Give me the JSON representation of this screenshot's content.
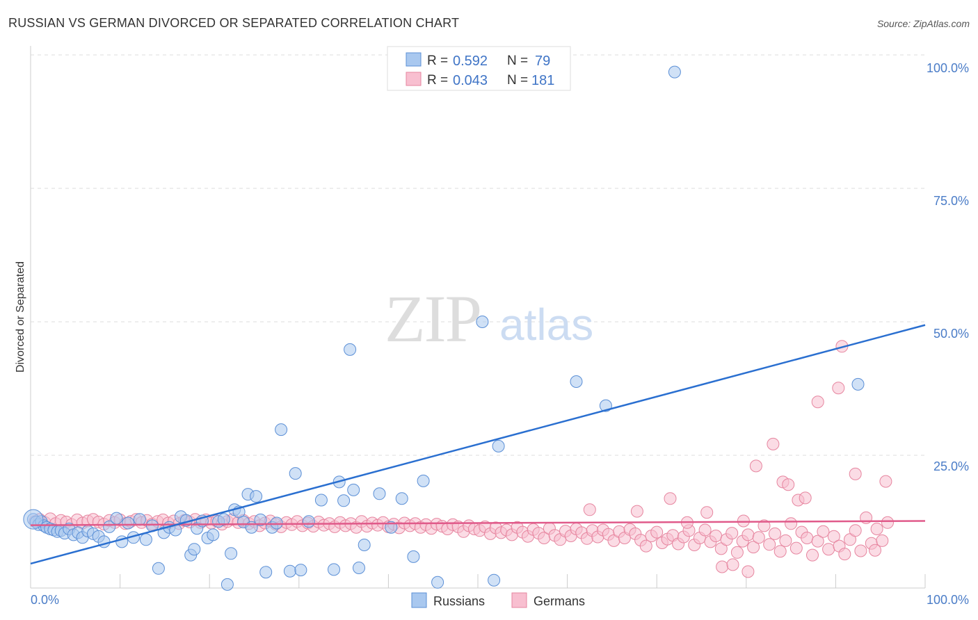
{
  "title": "RUSSIAN VS GERMAN DIVORCED OR SEPARATED CORRELATION CHART",
  "source": "Source: ZipAtlas.com",
  "watermark": {
    "zip": "ZIP",
    "atlas": "atlas"
  },
  "colors": {
    "russians_fill": "#a9c8ef",
    "russians_stroke": "#5b8fd6",
    "russians_line": "#2a6fd0",
    "germans_fill": "#f8bfd0",
    "germans_stroke": "#e6859f",
    "germans_line": "#e05a8a",
    "tick_text": "#4a7cc7",
    "grid": "#dddddd"
  },
  "stats": {
    "russians": {
      "r_label": "R =",
      "r_value": "0.592",
      "n_label": "N =",
      "n_value": "79"
    },
    "germans": {
      "r_label": "R =",
      "r_value": "0.043",
      "n_label": "N =",
      "n_value": "181"
    }
  },
  "chart_data": {
    "type": "scatter",
    "title": "RUSSIAN VS GERMAN DIVORCED OR SEPARATED CORRELATION CHART",
    "xlabel": "",
    "ylabel": "Divorced or Separated",
    "xlim": [
      0,
      100
    ],
    "ylim": [
      0,
      100
    ],
    "x_tick_labels": [
      "0.0%",
      "100.0%"
    ],
    "y_ticks": [
      25,
      50,
      75,
      100
    ],
    "y_tick_labels": [
      "25.0%",
      "50.0%",
      "75.0%",
      "100.0%"
    ],
    "grid": true,
    "legend_position": "bottom",
    "series": [
      {
        "name": "Russians",
        "trendline": {
          "x": [
            0,
            100
          ],
          "y": [
            4.7,
            49.4
          ]
        },
        "points": [
          [
            0.3,
            13.0
          ],
          [
            0.6,
            12.5
          ],
          [
            0.9,
            12.0
          ],
          [
            1.2,
            12.6
          ],
          [
            1.5,
            11.8
          ],
          [
            1.8,
            11.5
          ],
          [
            2.2,
            11.2
          ],
          [
            2.6,
            11.0
          ],
          [
            3.0,
            10.7
          ],
          [
            3.4,
            10.9
          ],
          [
            3.8,
            10.4
          ],
          [
            4.3,
            11.2
          ],
          [
            4.8,
            10.1
          ],
          [
            5.3,
            10.5
          ],
          [
            5.8,
            9.6
          ],
          [
            6.4,
            10.8
          ],
          [
            7.0,
            10.3
          ],
          [
            7.6,
            9.8
          ],
          [
            8.2,
            8.8
          ],
          [
            8.8,
            11.6
          ],
          [
            9.6,
            13.2
          ],
          [
            10.2,
            8.8
          ],
          [
            10.9,
            12.3
          ],
          [
            11.5,
            9.6
          ],
          [
            12.2,
            13.0
          ],
          [
            12.9,
            9.2
          ],
          [
            13.6,
            11.8
          ],
          [
            14.3,
            3.8
          ],
          [
            14.9,
            10.5
          ],
          [
            15.5,
            11.5
          ],
          [
            16.2,
            11.0
          ],
          [
            16.8,
            13.5
          ],
          [
            17.4,
            12.8
          ],
          [
            17.9,
            6.3
          ],
          [
            18.3,
            7.4
          ],
          [
            18.6,
            11.3
          ],
          [
            19.2,
            12.7
          ],
          [
            19.8,
            9.5
          ],
          [
            20.4,
            10.1
          ],
          [
            21.0,
            12.6
          ],
          [
            21.6,
            13.0
          ],
          [
            22.0,
            0.8
          ],
          [
            22.4,
            6.6
          ],
          [
            22.8,
            14.8
          ],
          [
            23.3,
            14.4
          ],
          [
            23.8,
            12.5
          ],
          [
            24.3,
            17.7
          ],
          [
            24.7,
            11.5
          ],
          [
            25.2,
            17.3
          ],
          [
            25.7,
            12.9
          ],
          [
            26.3,
            3.1
          ],
          [
            27.0,
            11.5
          ],
          [
            27.5,
            12.3
          ],
          [
            28.0,
            29.8
          ],
          [
            29.0,
            3.3
          ],
          [
            29.6,
            21.6
          ],
          [
            30.2,
            3.5
          ],
          [
            31.1,
            12.6
          ],
          [
            32.5,
            16.6
          ],
          [
            33.9,
            3.6
          ],
          [
            34.5,
            20.0
          ],
          [
            35.0,
            16.5
          ],
          [
            35.7,
            44.8
          ],
          [
            36.1,
            18.5
          ],
          [
            36.7,
            3.9
          ],
          [
            37.3,
            8.2
          ],
          [
            39.0,
            17.8
          ],
          [
            40.3,
            11.5
          ],
          [
            41.5,
            16.9
          ],
          [
            42.8,
            6.0
          ],
          [
            43.9,
            20.2
          ],
          [
            45.5,
            1.2
          ],
          [
            50.5,
            50.0
          ],
          [
            51.8,
            1.6
          ],
          [
            52.3,
            26.7
          ],
          [
            61.0,
            38.8
          ],
          [
            64.3,
            34.3
          ],
          [
            72.0,
            96.8
          ],
          [
            92.5,
            38.3
          ]
        ]
      },
      {
        "name": "Germans",
        "trendline": {
          "x": [
            0,
            100
          ],
          "y": [
            11.9,
            12.7
          ]
        },
        "points": [
          [
            0.5,
            12.6
          ],
          [
            1.0,
            13.0
          ],
          [
            1.6,
            12.4
          ],
          [
            2.2,
            13.1
          ],
          [
            2.8,
            12.2
          ],
          [
            3.4,
            12.8
          ],
          [
            4.0,
            12.5
          ],
          [
            4.6,
            12.0
          ],
          [
            5.2,
            12.9
          ],
          [
            5.8,
            12.3
          ],
          [
            6.4,
            12.7
          ],
          [
            7.0,
            13.0
          ],
          [
            7.6,
            12.5
          ],
          [
            8.2,
            12.1
          ],
          [
            8.8,
            12.8
          ],
          [
            9.4,
            12.4
          ],
          [
            10.0,
            12.9
          ],
          [
            10.6,
            12.2
          ],
          [
            11.2,
            12.6
          ],
          [
            11.8,
            13.0
          ],
          [
            12.4,
            12.4
          ],
          [
            13.0,
            12.8
          ],
          [
            13.6,
            12.1
          ],
          [
            14.2,
            12.6
          ],
          [
            14.8,
            12.9
          ],
          [
            15.4,
            12.3
          ],
          [
            16.0,
            12.7
          ],
          [
            16.6,
            12.2
          ],
          [
            17.2,
            12.8
          ],
          [
            17.8,
            12.5
          ],
          [
            18.4,
            13.0
          ],
          [
            19.0,
            12.4
          ],
          [
            19.6,
            12.9
          ],
          [
            20.2,
            12.3
          ],
          [
            20.8,
            12.7
          ],
          [
            21.4,
            12.1
          ],
          [
            22.0,
            12.6
          ],
          [
            22.6,
            13.0
          ],
          [
            23.2,
            12.4
          ],
          [
            23.8,
            12.8
          ],
          [
            24.4,
            12.2
          ],
          [
            25.0,
            12.6
          ],
          [
            25.6,
            11.8
          ],
          [
            26.2,
            12.3
          ],
          [
            26.8,
            12.7
          ],
          [
            27.4,
            12.1
          ],
          [
            28.0,
            11.6
          ],
          [
            28.6,
            12.4
          ],
          [
            29.2,
            12.0
          ],
          [
            29.8,
            12.6
          ],
          [
            30.4,
            11.8
          ],
          [
            31.0,
            12.3
          ],
          [
            31.6,
            11.7
          ],
          [
            32.2,
            12.5
          ],
          [
            32.8,
            11.9
          ],
          [
            33.4,
            12.2
          ],
          [
            34.0,
            11.6
          ],
          [
            34.6,
            12.4
          ],
          [
            35.2,
            11.8
          ],
          [
            35.8,
            12.2
          ],
          [
            36.4,
            11.5
          ],
          [
            37.0,
            12.6
          ],
          [
            37.6,
            11.7
          ],
          [
            38.2,
            12.3
          ],
          [
            38.8,
            11.9
          ],
          [
            39.4,
            12.4
          ],
          [
            40.0,
            11.6
          ],
          [
            40.6,
            12.1
          ],
          [
            41.2,
            11.4
          ],
          [
            41.8,
            12.3
          ],
          [
            42.4,
            11.8
          ],
          [
            43.0,
            12.2
          ],
          [
            43.6,
            11.5
          ],
          [
            44.2,
            12.0
          ],
          [
            44.8,
            11.3
          ],
          [
            45.4,
            12.1
          ],
          [
            46.0,
            11.7
          ],
          [
            46.6,
            11.2
          ],
          [
            47.2,
            12.0
          ],
          [
            47.8,
            11.6
          ],
          [
            48.4,
            10.7
          ],
          [
            49.0,
            11.8
          ],
          [
            49.6,
            11.2
          ],
          [
            50.2,
            10.9
          ],
          [
            50.8,
            11.6
          ],
          [
            51.4,
            10.3
          ],
          [
            52.0,
            11.4
          ],
          [
            52.6,
            10.5
          ],
          [
            53.2,
            11.0
          ],
          [
            53.8,
            10.1
          ],
          [
            54.4,
            11.5
          ],
          [
            55.0,
            10.6
          ],
          [
            55.6,
            9.8
          ],
          [
            56.2,
            11.1
          ],
          [
            56.8,
            10.4
          ],
          [
            57.4,
            9.5
          ],
          [
            58.0,
            11.3
          ],
          [
            58.6,
            10.0
          ],
          [
            59.2,
            9.2
          ],
          [
            59.8,
            10.8
          ],
          [
            60.4,
            9.9
          ],
          [
            61.0,
            11.2
          ],
          [
            61.6,
            10.5
          ],
          [
            62.2,
            9.4
          ],
          [
            62.8,
            10.9
          ],
          [
            63.4,
            9.7
          ],
          [
            64.0,
            11.0
          ],
          [
            64.6,
            10.2
          ],
          [
            65.2,
            9.0
          ],
          [
            65.8,
            10.7
          ],
          [
            66.4,
            9.5
          ],
          [
            67.0,
            11.1
          ],
          [
            67.6,
            10.3
          ],
          [
            68.2,
            9.1
          ],
          [
            68.8,
            8.0
          ],
          [
            69.4,
            9.9
          ],
          [
            70.0,
            10.6
          ],
          [
            70.6,
            8.6
          ],
          [
            71.2,
            9.3
          ],
          [
            71.8,
            10.0
          ],
          [
            72.4,
            8.4
          ],
          [
            73.0,
            9.7
          ],
          [
            73.6,
            10.9
          ],
          [
            74.2,
            8.2
          ],
          [
            74.8,
            9.5
          ],
          [
            75.4,
            11.0
          ],
          [
            76.0,
            8.8
          ],
          [
            76.6,
            9.9
          ],
          [
            77.2,
            7.5
          ],
          [
            77.8,
            9.2
          ],
          [
            78.4,
            10.4
          ],
          [
            79.0,
            6.8
          ],
          [
            79.6,
            8.9
          ],
          [
            80.2,
            10.1
          ],
          [
            80.8,
            7.8
          ],
          [
            81.4,
            9.6
          ],
          [
            82.0,
            11.8
          ],
          [
            82.6,
            8.3
          ],
          [
            83.2,
            10.3
          ],
          [
            83.8,
            7.0
          ],
          [
            84.4,
            9.0
          ],
          [
            85.0,
            12.2
          ],
          [
            85.6,
            7.6
          ],
          [
            86.2,
            10.6
          ],
          [
            86.8,
            9.5
          ],
          [
            87.4,
            6.3
          ],
          [
            88.0,
            8.9
          ],
          [
            88.6,
            10.7
          ],
          [
            89.2,
            7.4
          ],
          [
            89.8,
            9.8
          ],
          [
            90.4,
            8.0
          ],
          [
            91.0,
            6.5
          ],
          [
            91.6,
            9.2
          ],
          [
            92.2,
            10.9
          ],
          [
            92.8,
            7.1
          ],
          [
            93.4,
            13.3
          ],
          [
            94.0,
            8.5
          ],
          [
            94.6,
            11.2
          ],
          [
            95.2,
            9.0
          ],
          [
            95.8,
            12.4
          ],
          [
            62.5,
            14.8
          ],
          [
            67.8,
            14.5
          ],
          [
            71.5,
            16.9
          ],
          [
            73.4,
            12.4
          ],
          [
            75.6,
            14.3
          ],
          [
            79.7,
            12.7
          ],
          [
            81.1,
            23.0
          ],
          [
            83.0,
            27.1
          ],
          [
            84.1,
            20.0
          ],
          [
            84.7,
            19.5
          ],
          [
            85.8,
            16.6
          ],
          [
            86.6,
            17.0
          ],
          [
            88.0,
            35.0
          ],
          [
            90.3,
            37.6
          ],
          [
            90.7,
            45.4
          ],
          [
            92.2,
            21.5
          ],
          [
            94.4,
            7.2
          ],
          [
            95.6,
            20.1
          ],
          [
            77.3,
            4.1
          ],
          [
            78.5,
            4.5
          ],
          [
            80.2,
            3.2
          ]
        ]
      }
    ]
  }
}
